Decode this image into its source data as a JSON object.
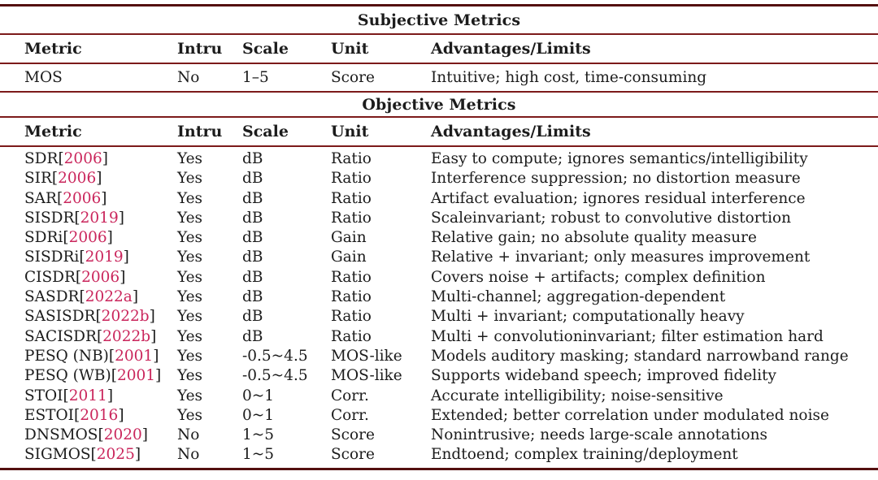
{
  "table": {
    "rule_color_thick": "#541010",
    "rule_color_thin": "#7c1a1a",
    "citation_color": "#ca265c",
    "citation_brackets": [
      "[",
      "]"
    ],
    "columns": [
      "Metric",
      "Intru",
      "Scale",
      "Unit",
      "Advantages/Limits"
    ],
    "sections": [
      {
        "title": "Subjective Metrics",
        "rows": [
          {
            "name": "MOS",
            "year": "",
            "intru": "No",
            "scale": "1–5",
            "unit": "Score",
            "advantages": "Intuitive; high cost, time-consuming"
          }
        ]
      },
      {
        "title": "Objective Metrics",
        "rows": [
          {
            "name": "SDR",
            "year": "2006",
            "intru": "Yes",
            "scale": "dB",
            "unit": "Ratio",
            "advantages": "Easy to compute; ignores semantics/intelligibility"
          },
          {
            "name": "SIR",
            "year": "2006",
            "intru": "Yes",
            "scale": "dB",
            "unit": "Ratio",
            "advantages": "Interference suppression; no distortion measure"
          },
          {
            "name": "SAR",
            "year": "2006",
            "intru": "Yes",
            "scale": "dB",
            "unit": "Ratio",
            "advantages": "Artifact evaluation; ignores residual interference"
          },
          {
            "name": "SISDR",
            "year": "2019",
            "intru": "Yes",
            "scale": "dB",
            "unit": "Ratio",
            "advantages": "Scaleinvariant; robust to convolutive distortion"
          },
          {
            "name": "SDRi",
            "year": "2006",
            "intru": "Yes",
            "scale": "dB",
            "unit": "Gain",
            "advantages": "Relative gain; no absolute quality measure"
          },
          {
            "name": "SISDRi",
            "year": "2019",
            "intru": "Yes",
            "scale": "dB",
            "unit": "Gain",
            "advantages": "Relative + invariant; only measures improvement"
          },
          {
            "name": "CISDR",
            "year": "2006",
            "intru": "Yes",
            "scale": "dB",
            "unit": "Ratio",
            "advantages": "Covers noise + artifacts; complex definition"
          },
          {
            "name": "SASDR",
            "year": "2022a",
            "intru": "Yes",
            "scale": "dB",
            "unit": "Ratio",
            "advantages": "Multi-channel; aggregation-dependent"
          },
          {
            "name": "SASISDR",
            "year": "2022b",
            "intru": "Yes",
            "scale": "dB",
            "unit": "Ratio",
            "advantages": "Multi + invariant; computationally heavy"
          },
          {
            "name": "SACISDR",
            "year": "2022b",
            "intru": "Yes",
            "scale": "dB",
            "unit": "Ratio",
            "advantages": "Multi + convolutioninvariant; filter estimation hard"
          },
          {
            "name": "PESQ (NB)",
            "year": "2001",
            "intru": "Yes",
            "scale": "-0.5~4.5",
            "unit": "MOS-like",
            "advantages": "Models auditory masking; standard narrowband range"
          },
          {
            "name": "PESQ (WB)",
            "year": "2001",
            "intru": "Yes",
            "scale": "-0.5~4.5",
            "unit": "MOS-like",
            "advantages": "Supports wideband speech; improved fidelity"
          },
          {
            "name": "STOI",
            "year": "2011",
            "intru": "Yes",
            "scale": "0~1",
            "unit": "Corr.",
            "advantages": "Accurate intelligibility; noise-sensitive"
          },
          {
            "name": "ESTOI",
            "year": "2016",
            "intru": "Yes",
            "scale": "0~1",
            "unit": "Corr.",
            "advantages": "Extended; better correlation under modulated noise"
          },
          {
            "name": "DNSMOS",
            "year": "2020",
            "intru": "No",
            "scale": "1~5",
            "unit": "Score",
            "advantages": "Nonintrusive; needs large-scale annotations"
          },
          {
            "name": "SIGMOS",
            "year": "2025",
            "intru": "No",
            "scale": "1~5",
            "unit": "Score",
            "advantages": "Endtoend; complex training/deployment"
          }
        ]
      }
    ]
  }
}
